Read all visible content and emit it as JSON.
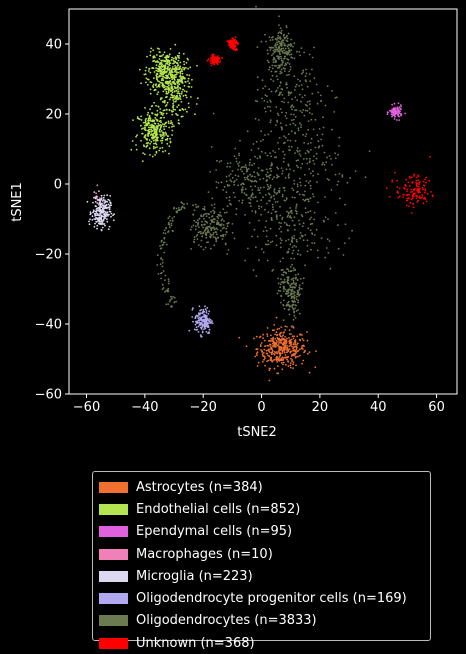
{
  "chart_data": {
    "type": "scatter",
    "xlabel": "tSNE2",
    "ylabel": "tSNE1",
    "xlim": [
      -66,
      67
    ],
    "ylim": [
      -60,
      50
    ],
    "xticks": [
      -60,
      -40,
      -20,
      0,
      20,
      40,
      60
    ],
    "yticks": [
      -60,
      -40,
      -20,
      0,
      20,
      40
    ],
    "xtick_labels": [
      "−60",
      "−40",
      "−20",
      "0",
      "20",
      "40",
      "60"
    ],
    "ytick_labels": [
      "−60",
      "−40",
      "−20",
      "0",
      "20",
      "40"
    ],
    "grid": false,
    "legend_position": "below",
    "series": [
      {
        "name": "Astrocytes (n=384)",
        "color": "#f07030",
        "n": 384,
        "blobs": [
          [
            7,
            -47,
            7,
            4.5
          ]
        ]
      },
      {
        "name": "Endothelial cells (n=852)",
        "color": "#b4e450",
        "n": 852,
        "blobs": [
          [
            -30,
            28,
            5,
            8
          ],
          [
            -37,
            15,
            4.5,
            5
          ],
          [
            -33,
            32,
            5,
            5
          ]
        ]
      },
      {
        "name": "Ependymal cells (n=95)",
        "color": "#e060e0",
        "n": 95,
        "blobs": [
          [
            46,
            20.5,
            1.8,
            1.5
          ]
        ]
      },
      {
        "name": "Macrophages (n=10)",
        "color": "#f080b8",
        "n": 10,
        "blobs": [
          [
            -56.5,
            -5,
            1.2,
            3
          ]
        ]
      },
      {
        "name": "Microglia (n=223)",
        "color": "#dcd8f0",
        "n": 223,
        "blobs": [
          [
            -55,
            -8,
            2.6,
            3.8
          ]
        ]
      },
      {
        "name": "Oligodendrocyte progenitor cells (n=169)",
        "color": "#b0a8f0",
        "n": 169,
        "blobs": [
          [
            -20,
            -39,
            2.4,
            3.2
          ]
        ]
      },
      {
        "name": "Oligodendrocytes (n=3833)",
        "color": "#6b7a50",
        "n": 3833,
        "blobs": [
          [
            10,
            25,
            10,
            12
          ],
          [
            12,
            5,
            14,
            12
          ],
          [
            10,
            -12,
            13,
            10
          ],
          [
            -5,
            0,
            10,
            8
          ],
          [
            7,
            38,
            4,
            5
          ],
          [
            -18,
            -12,
            6,
            5
          ],
          [
            10,
            -30,
            3,
            7
          ]
        ],
        "arc": {
          "from": [
            -27,
            -5
          ],
          "to": [
            -30,
            -35
          ]
        }
      },
      {
        "name": "Unknown (n=368)",
        "color": "#ff0000",
        "n": 368,
        "blobs": [
          [
            52,
            -2,
            5,
            3.8
          ],
          [
            -10,
            40,
            1.2,
            1.2
          ],
          [
            -16,
            35.5,
            1.5,
            1
          ]
        ]
      }
    ]
  }
}
